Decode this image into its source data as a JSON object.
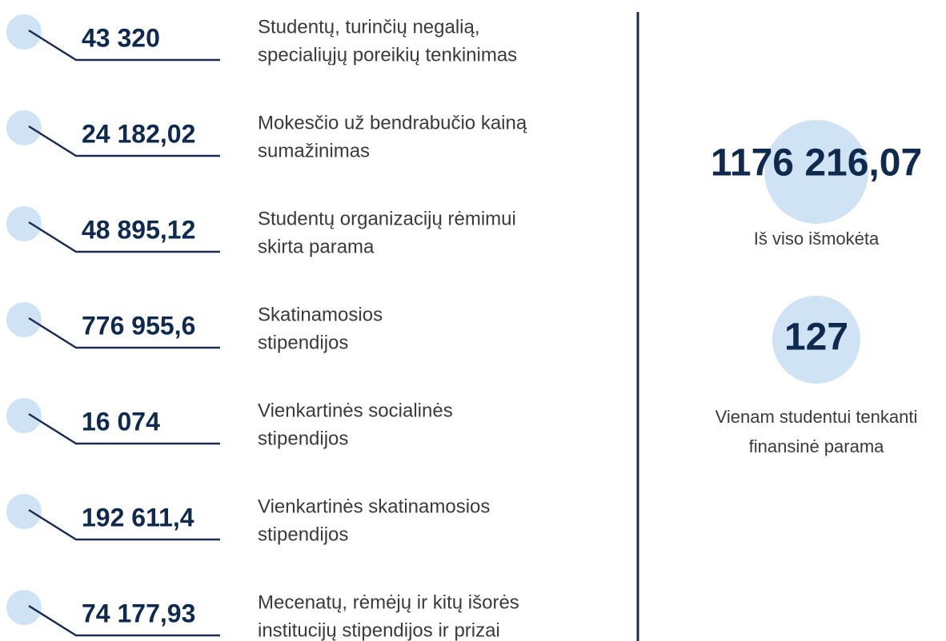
{
  "items": [
    {
      "value": "43 320",
      "label": [
        "Studentų, turinčių negalią,",
        "specialiųjų poreikių tenkinimas"
      ]
    },
    {
      "value": "24 182,02",
      "label": [
        "Mokesčio už bendrabučio kainą",
        "sumažinimas"
      ]
    },
    {
      "value": "48 895,12",
      "label": [
        "Studentų organizacijų rėmimui",
        "skirta parama"
      ]
    },
    {
      "value": "776 955,6",
      "label": [
        "Skatinamosios",
        "stipendijos"
      ]
    },
    {
      "value": "16 074",
      "label": [
        "Vienkartinės socialinės",
        "stipendijos"
      ]
    },
    {
      "value": "192 611,4",
      "label": [
        "Vienkartinės skatinamosios",
        "stipendijos"
      ]
    },
    {
      "value": "74 177,93",
      "label": [
        "Mecenatų, rėmėjų ir kitų išorės",
        "institucijų stipendijos ir prizai"
      ]
    }
  ],
  "summary": [
    {
      "value": "1176 216,07",
      "label": [
        "Iš viso išmokėta"
      ]
    },
    {
      "value": "127",
      "label": [
        "Vienam studentui tenkanti",
        "finansinė parama"
      ]
    }
  ]
}
